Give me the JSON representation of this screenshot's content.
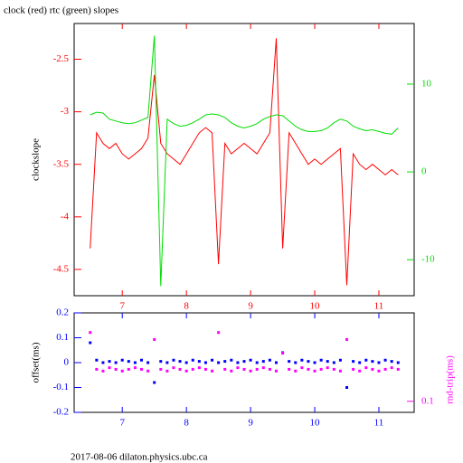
{
  "chart_data": [
    {
      "type": "line",
      "title": "clock (red) rtc (green) slopes",
      "ylabel": "clockslope",
      "x": [
        6.5,
        6.6,
        6.7,
        6.8,
        6.9,
        7.0,
        7.1,
        7.2,
        7.3,
        7.4,
        7.5,
        7.6,
        7.7,
        7.8,
        7.9,
        8.0,
        8.1,
        8.2,
        8.3,
        8.4,
        8.5,
        8.6,
        8.7,
        8.8,
        8.9,
        9.0,
        9.1,
        9.2,
        9.3,
        9.4,
        9.5,
        9.6,
        9.7,
        9.8,
        9.9,
        10.0,
        10.1,
        10.2,
        10.3,
        10.4,
        10.5,
        10.6,
        10.7,
        10.8,
        10.9,
        11.0,
        11.1,
        11.2,
        11.3
      ],
      "xlim": [
        6.25,
        11.55
      ],
      "xticks": [
        7,
        8,
        9,
        10,
        11
      ],
      "ylim": [
        -4.75,
        -2.16
      ],
      "yticks": [
        -4.5,
        -4,
        -3.5,
        -3,
        -2.5
      ],
      "y2lim": [
        -14.1,
        16.9
      ],
      "y2ticks": [
        -10,
        0,
        10
      ],
      "series": [
        {
          "color": "#ff0000",
          "values": [
            -4.3,
            -3.2,
            -3.3,
            -3.35,
            -3.3,
            -3.4,
            -3.45,
            -3.4,
            -3.35,
            -3.25,
            -2.65,
            -3.3,
            -3.4,
            -3.45,
            -3.5,
            -3.4,
            -3.3,
            -3.2,
            -3.15,
            -3.2,
            -4.45,
            -3.3,
            -3.4,
            -3.35,
            -3.3,
            -3.35,
            -3.4,
            -3.3,
            -3.2,
            -2.3,
            -4.3,
            -3.2,
            -3.3,
            -3.4,
            -3.5,
            -3.45,
            -3.5,
            -3.45,
            -3.4,
            -3.35,
            -4.65,
            -3.4,
            -3.5,
            -3.55,
            -3.5,
            -3.55,
            -3.6,
            -3.55,
            -3.6
          ]
        },
        {
          "color": "#00dd00",
          "axis": "y2",
          "values": [
            6.5,
            6.8,
            6.7,
            6.0,
            5.8,
            5.6,
            5.5,
            5.6,
            5.9,
            6.2,
            15.5,
            -13,
            6.0,
            5.5,
            5.2,
            5.3,
            5.6,
            6.0,
            6.5,
            6.6,
            6.5,
            6.2,
            5.6,
            5.2,
            5.0,
            5.2,
            5.5,
            6.0,
            6.3,
            6.5,
            6.4,
            5.8,
            5.2,
            4.8,
            4.6,
            4.6,
            4.7,
            5.0,
            5.6,
            6.0,
            5.8,
            5.2,
            4.9,
            4.7,
            4.8,
            4.6,
            4.4,
            4.3,
            5.0
          ]
        }
      ]
    },
    {
      "type": "scatter",
      "ylabel": "offset(ms)",
      "y2label": "rnd-trip(ms)",
      "x": [
        6.5,
        6.6,
        6.7,
        6.8,
        6.9,
        7.0,
        7.1,
        7.2,
        7.3,
        7.4,
        7.5,
        7.6,
        7.7,
        7.8,
        7.9,
        8.0,
        8.1,
        8.2,
        8.3,
        8.4,
        8.5,
        8.6,
        8.7,
        8.8,
        8.9,
        9.0,
        9.1,
        9.2,
        9.3,
        9.4,
        9.5,
        9.6,
        9.7,
        9.8,
        9.9,
        10.0,
        10.1,
        10.2,
        10.3,
        10.4,
        10.5,
        10.6,
        10.7,
        10.8,
        10.9,
        11.0,
        11.1,
        11.2,
        11.3
      ],
      "xlim": [
        6.25,
        11.55
      ],
      "xticks": [
        7,
        8,
        9,
        10,
        11
      ],
      "ylim": [
        -0.2,
        0.2
      ],
      "yticks": [
        0.2,
        0.1,
        0,
        -0.1,
        -0.2
      ],
      "y2lim": [
        0.075,
        1
      ],
      "y2ticks": [
        0.1
      ],
      "y2log": true,
      "series": [
        {
          "color": "#0000ff",
          "values": [
            0.08,
            0.01,
            0.0,
            0.005,
            0.0,
            0.01,
            0.005,
            0.0,
            0.01,
            0.0,
            -0.08,
            0.005,
            0.0,
            0.01,
            0.005,
            0.0,
            0.01,
            0.005,
            0.0,
            0.01,
            0.0,
            0.005,
            0.01,
            0.0,
            0.005,
            0.01,
            0.0,
            0.005,
            0.01,
            0.0,
            0.04,
            0.005,
            0.0,
            0.01,
            0.005,
            0.0,
            0.01,
            0.005,
            0.0,
            0.01,
            -0.1,
            0.005,
            0.0,
            0.01,
            0.005,
            0.0,
            0.01,
            0.005,
            0.0
          ]
        },
        {
          "color": "#ff00ff",
          "axis": "y2",
          "values": [
            0.6,
            0.23,
            0.22,
            0.24,
            0.23,
            0.22,
            0.23,
            0.24,
            0.23,
            0.22,
            0.5,
            0.23,
            0.22,
            0.24,
            0.23,
            0.22,
            0.23,
            0.24,
            0.23,
            0.22,
            0.6,
            0.23,
            0.22,
            0.24,
            0.23,
            0.22,
            0.23,
            0.24,
            0.23,
            0.22,
            0.35,
            0.23,
            0.22,
            0.24,
            0.23,
            0.22,
            0.23,
            0.24,
            0.23,
            0.22,
            0.5,
            0.23,
            0.22,
            0.24,
            0.23,
            0.22,
            0.23,
            0.24,
            0.23
          ]
        }
      ]
    }
  ],
  "footer": "2017-08-06 dilaton.physics.ubc.ca"
}
